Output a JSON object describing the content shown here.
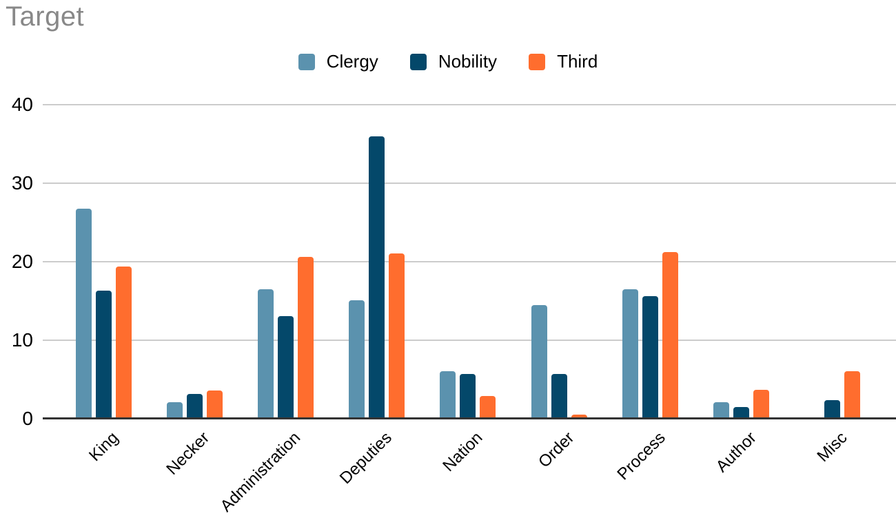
{
  "title": "Target",
  "colors": {
    "title_text": "#888888",
    "axis_line": "#333333",
    "gridline": "#cccccc",
    "label_text": "#000000",
    "background": "#ffffff"
  },
  "chart_data": {
    "type": "bar",
    "title": "Target",
    "xlabel": "",
    "ylabel": "",
    "categories": [
      "King",
      "Necker",
      "Administration",
      "Deputies",
      "Nation",
      "Order",
      "Process",
      "Author",
      "Misc"
    ],
    "series": [
      {
        "name": "Clergy",
        "color": "#5b92ae",
        "values": [
          26.8,
          2.1,
          16.5,
          15.1,
          6.1,
          14.5,
          16.5,
          2.1,
          0
        ]
      },
      {
        "name": "Nobility",
        "color": "#04486a",
        "values": [
          16.3,
          3.2,
          13.1,
          36.0,
          5.7,
          5.7,
          15.6,
          1.5,
          2.4
        ]
      },
      {
        "name": "Third",
        "color": "#ff6d2e",
        "values": [
          19.4,
          3.6,
          20.6,
          21.1,
          2.9,
          0.5,
          21.2,
          3.7,
          6.1
        ]
      }
    ],
    "ylim": [
      0,
      40
    ],
    "yticks": [
      0,
      10,
      20,
      30,
      40
    ],
    "grid": true,
    "legend_position": "top-center"
  }
}
